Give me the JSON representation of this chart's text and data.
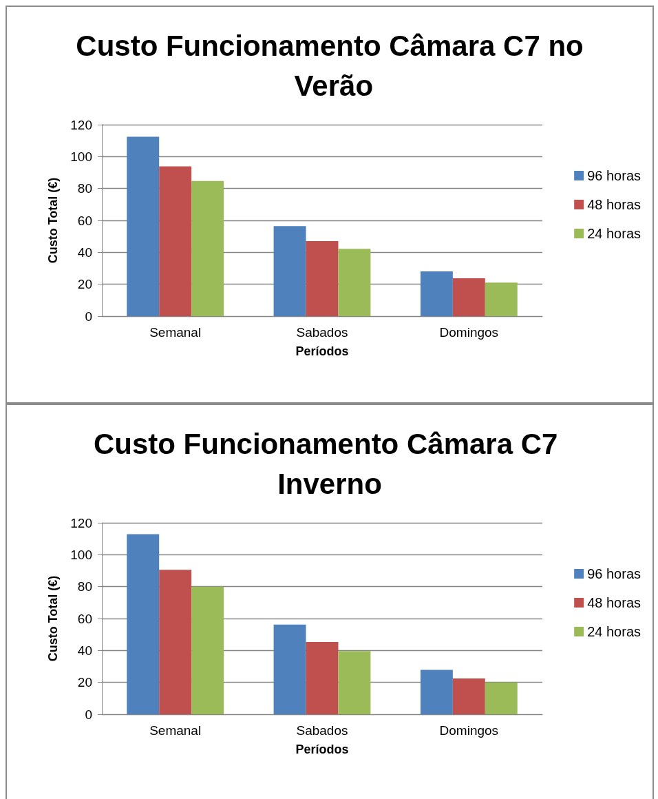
{
  "chart_data": [
    {
      "type": "bar",
      "title": "Custo Funcionamento Câmara C7 no Verão",
      "xlabel": "Períodos",
      "ylabel": "Custo Total (€)",
      "categories": [
        "Semanal",
        "Sabados",
        "Domingos"
      ],
      "series": [
        {
          "name": "96 horas",
          "color": "#4f81bd",
          "values": [
            112.4,
            56.4,
            28.1
          ]
        },
        {
          "name": "48 horas",
          "color": "#c0504d",
          "values": [
            93.9,
            47.1,
            23.7
          ]
        },
        {
          "name": "24 horas",
          "color": "#9bbb59",
          "values": [
            84.7,
            42.2,
            21.0
          ]
        }
      ],
      "ylim": [
        0,
        120
      ],
      "yticks": [
        0,
        20,
        40,
        60,
        80,
        100,
        120
      ],
      "grid": "y",
      "legend": "right"
    },
    {
      "type": "bar",
      "title": "Custo Funcionamento Câmara C7 Inverno",
      "xlabel": "Períodos",
      "ylabel": "Custo Total (€)",
      "categories": [
        "Semanal",
        "Sabados",
        "Domingos"
      ],
      "series": [
        {
          "name": "96 horas",
          "color": "#4f81bd",
          "values": [
            112.9,
            56.2,
            27.8
          ]
        },
        {
          "name": "48 horas",
          "color": "#c0504d",
          "values": [
            90.5,
            45.3,
            22.4
          ]
        },
        {
          "name": "24 horas",
          "color": "#9bbb59",
          "values": [
            80.0,
            39.6,
            20.0
          ]
        }
      ],
      "ylim": [
        0,
        120
      ],
      "yticks": [
        0,
        20,
        40,
        60,
        80,
        100,
        120
      ],
      "grid": "y",
      "legend": "right"
    }
  ]
}
